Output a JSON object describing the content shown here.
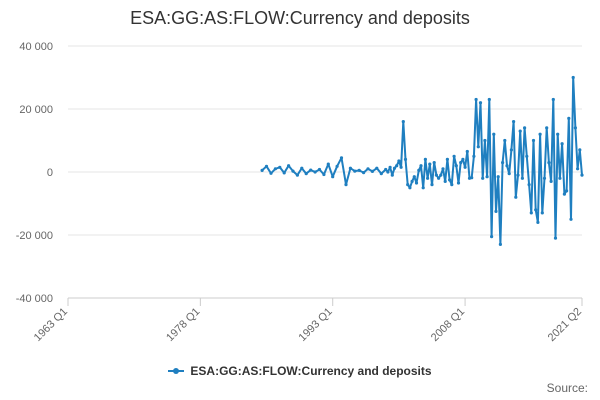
{
  "title": "ESA:GG:AS:FLOW:Currency and deposits",
  "source_label": "Source:",
  "colors": {
    "series": "#1f7fc0",
    "grid": "#e6e6e6",
    "axis": "#cccccc",
    "text": "#666666"
  },
  "chart_data": {
    "type": "line",
    "title": "ESA:GG:AS:FLOW:Currency and deposits",
    "xlabel": "",
    "ylabel": "",
    "xlim": [
      "1963 Q1",
      "2021 Q2"
    ],
    "ylim": [
      -40000,
      40000
    ],
    "y_ticks": [
      40000,
      20000,
      0,
      -20000,
      -40000
    ],
    "y_tick_labels": [
      "40 000",
      "20 000",
      "0",
      "-20 000",
      "-40 000"
    ],
    "x_ticks": [
      "1963 Q1",
      "1978 Q1",
      "1993 Q1",
      "2008 Q1",
      "2021 Q2"
    ],
    "grid": "horizontal",
    "legend": "bottom",
    "series": [
      {
        "name": "ESA:GG:AS:FLOW:Currency and deposits",
        "x": [
          "1985 Q1",
          "1985 Q3",
          "1986 Q1",
          "1986 Q3",
          "1987 Q1",
          "1987 Q3",
          "1988 Q1",
          "1988 Q3",
          "1989 Q1",
          "1989 Q3",
          "1990 Q1",
          "1990 Q3",
          "1991 Q1",
          "1991 Q3",
          "1992 Q1",
          "1992 Q3",
          "1993 Q1",
          "1993 Q3",
          "1994 Q1",
          "1994 Q3",
          "1995 Q1",
          "1995 Q3",
          "1996 Q1",
          "1996 Q3",
          "1997 Q1",
          "1997 Q3",
          "1998 Q1",
          "1998 Q3",
          "1999 Q1",
          "1999 Q2",
          "1999 Q3",
          "1999 Q4",
          "2000 Q1",
          "2000 Q2",
          "2000 Q3",
          "2000 Q4",
          "2001 Q1",
          "2001 Q2",
          "2001 Q3",
          "2001 Q4",
          "2002 Q1",
          "2002 Q2",
          "2002 Q3",
          "2002 Q4",
          "2003 Q1",
          "2003 Q2",
          "2003 Q3",
          "2003 Q4",
          "2004 Q1",
          "2004 Q2",
          "2004 Q3",
          "2004 Q4",
          "2005 Q1",
          "2005 Q2",
          "2005 Q3",
          "2005 Q4",
          "2006 Q1",
          "2006 Q2",
          "2006 Q3",
          "2006 Q4",
          "2007 Q1",
          "2007 Q2",
          "2007 Q3",
          "2007 Q4",
          "2008 Q1",
          "2008 Q2",
          "2008 Q3",
          "2008 Q4",
          "2009 Q1",
          "2009 Q2",
          "2009 Q3",
          "2009 Q4",
          "2010 Q1",
          "2010 Q2",
          "2010 Q3",
          "2010 Q4",
          "2011 Q1",
          "2011 Q2",
          "2011 Q3",
          "2011 Q4",
          "2012 Q1",
          "2012 Q2",
          "2012 Q3",
          "2012 Q4",
          "2013 Q1",
          "2013 Q2",
          "2013 Q3",
          "2013 Q4",
          "2014 Q1",
          "2014 Q2",
          "2014 Q3",
          "2014 Q4",
          "2015 Q1",
          "2015 Q2",
          "2015 Q3",
          "2015 Q4",
          "2016 Q1",
          "2016 Q2",
          "2016 Q3",
          "2016 Q4",
          "2017 Q1",
          "2017 Q2",
          "2017 Q3",
          "2017 Q4",
          "2018 Q1",
          "2018 Q2",
          "2018 Q3",
          "2018 Q4",
          "2019 Q1",
          "2019 Q2",
          "2019 Q3",
          "2019 Q4",
          "2020 Q1",
          "2020 Q2",
          "2020 Q3",
          "2020 Q4",
          "2021 Q1",
          "2021 Q2"
        ],
        "values": [
          500,
          1800,
          -400,
          1000,
          1500,
          -300,
          2000,
          300,
          -1000,
          1200,
          -500,
          600,
          0,
          800,
          -800,
          2500,
          -1500,
          1800,
          4500,
          -4000,
          1200,
          300,
          500,
          -200,
          1000,
          200,
          1200,
          -500,
          800,
          0,
          1500,
          -1000,
          1200,
          2000,
          3500,
          1500,
          16000,
          4000,
          -4000,
          -5000,
          -3000,
          -1500,
          -3500,
          500,
          2000,
          -5000,
          4000,
          -2000,
          2500,
          -4000,
          3000,
          -1000,
          -2000,
          -1000,
          1000,
          -3000,
          4000,
          -2500,
          -4000,
          5000,
          2000,
          -3500,
          3000,
          4000,
          1500,
          6500,
          -2000,
          -1800,
          5000,
          23000,
          8000,
          22000,
          -2000,
          10000,
          -1500,
          23000,
          -20500,
          12000,
          -12500,
          -1500,
          -23000,
          3000,
          10000,
          2000,
          -500,
          7000,
          16000,
          -8000,
          -1000,
          13000,
          -2000,
          14000,
          5000,
          -4000,
          -13000,
          10000,
          -12000,
          -16000,
          12000,
          -13000,
          -2000,
          14000,
          3000,
          -3000,
          23000,
          -21000,
          12000,
          -2000,
          9000,
          -7000,
          -6000,
          17000,
          -15000,
          30000,
          14000,
          1000,
          7000,
          -1000
        ]
      }
    ]
  }
}
